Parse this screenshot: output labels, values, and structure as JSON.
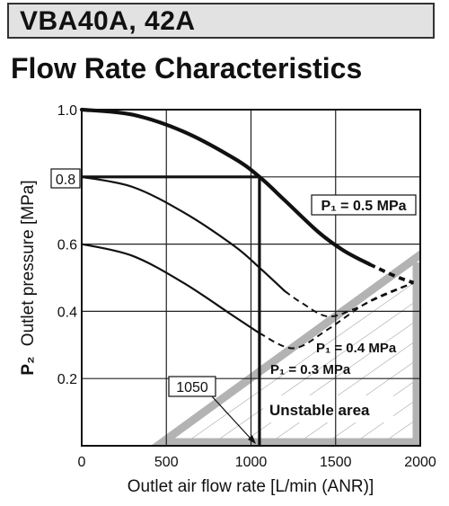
{
  "header": {
    "model": "VBA40A, 42A",
    "section_title": "Flow Rate Characteristics"
  },
  "chart_data": {
    "type": "line",
    "xlabel": "Outlet air flow rate [L/min (ANR)]",
    "ylabel": "P2 Outlet pressure [MPa]",
    "ylabel_prefix": "P₂",
    "ylabel_rest": "Outlet pressure [MPa]",
    "xlim": [
      0,
      2000
    ],
    "ylim": [
      0,
      1.0
    ],
    "xticks": [
      "0",
      "500",
      "1000",
      "1500",
      "2000"
    ],
    "yticks": [
      "0.2",
      "0.4",
      "0.6",
      "0.8",
      "1.0"
    ],
    "grid": true,
    "series": [
      {
        "name": "P1 = 0.5 MPa",
        "label": "P₁ = 0.5 MPa",
        "solid": [
          [
            0,
            1.0
          ],
          [
            300,
            0.985
          ],
          [
            600,
            0.935
          ],
          [
            900,
            0.855
          ],
          [
            1050,
            0.8
          ],
          [
            1200,
            0.73
          ],
          [
            1400,
            0.635
          ],
          [
            1550,
            0.58
          ],
          [
            1700,
            0.54
          ]
        ],
        "dashed": [
          [
            1700,
            0.54
          ],
          [
            1850,
            0.505
          ],
          [
            1960,
            0.485
          ]
        ]
      },
      {
        "name": "P1 = 0.4 MPa",
        "label": "P₁ = 0.4 MPa",
        "solid": [
          [
            0,
            0.8
          ],
          [
            300,
            0.77
          ],
          [
            600,
            0.695
          ],
          [
            900,
            0.595
          ],
          [
            1050,
            0.53
          ],
          [
            1200,
            0.46
          ]
        ],
        "dashed": [
          [
            1200,
            0.46
          ],
          [
            1300,
            0.425
          ],
          [
            1450,
            0.385
          ],
          [
            1600,
            0.405
          ],
          [
            1750,
            0.44
          ],
          [
            1960,
            0.485
          ]
        ]
      },
      {
        "name": "P1 = 0.3 MPa",
        "label": "P₁ = 0.3 MPa",
        "solid": [
          [
            0,
            0.6
          ],
          [
            300,
            0.565
          ],
          [
            600,
            0.485
          ],
          [
            900,
            0.385
          ],
          [
            1050,
            0.335
          ]
        ],
        "dashed": [
          [
            1050,
            0.335
          ],
          [
            1250,
            0.29
          ],
          [
            1450,
            0.345
          ],
          [
            1700,
            0.43
          ],
          [
            1960,
            0.485
          ]
        ]
      }
    ],
    "annotations": {
      "reference_y": "0.8",
      "reference_y_value": 0.8,
      "reference_x": "1050",
      "reference_x_value": 1050,
      "unstable_area_label": "Unstable area"
    }
  }
}
